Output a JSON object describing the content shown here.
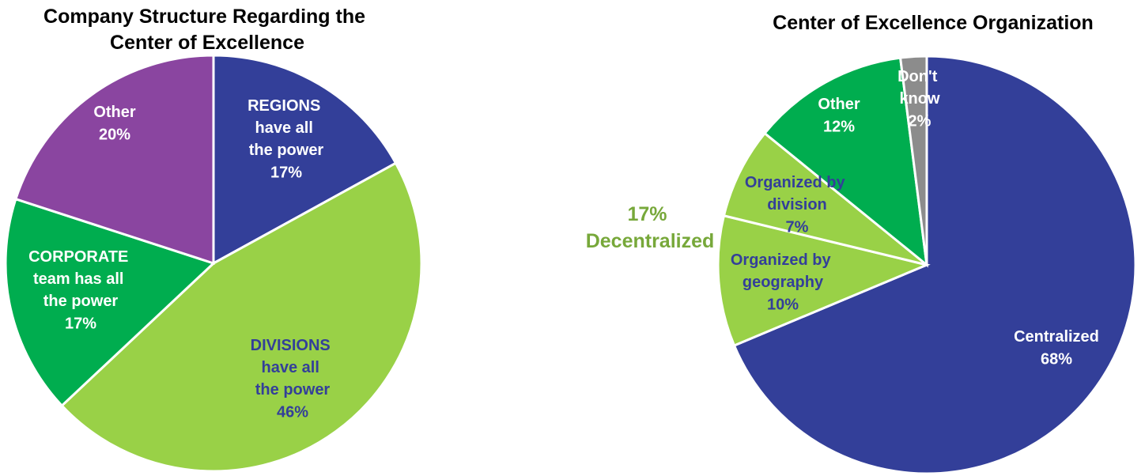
{
  "chart_data": [
    {
      "type": "pie",
      "title": "Company Structure Regarding the Center of Excellence",
      "categories": [
        "REGIONS have all the power",
        "DIVISIONS have all the power",
        "CORPORATE team has all the power",
        "Other"
      ],
      "values": [
        17,
        46,
        17,
        20
      ],
      "value_labels": [
        "17%",
        "46%",
        "17%",
        "20%"
      ],
      "colors": [
        "#333f99",
        "#99d147",
        "#00ad4f",
        "#8a45a0"
      ],
      "label_colors": [
        "#ffffff",
        "#333f99",
        "#ffffff",
        "#ffffff"
      ]
    },
    {
      "type": "pie",
      "title": "Center of Excellence Organization",
      "categories": [
        "Centralized",
        "Organized by geography",
        "Organized by division",
        "Other",
        "Don't know"
      ],
      "values": [
        68,
        10,
        7,
        12,
        2
      ],
      "value_labels": [
        "68%",
        "10%",
        "7%",
        "12%",
        "2%"
      ],
      "colors": [
        "#333f99",
        "#99d147",
        "#99d147",
        "#00ad4f",
        "#8c8c8c"
      ],
      "label_colors": [
        "#ffffff",
        "#333f99",
        "#333f99",
        "#ffffff",
        "#ffffff"
      ],
      "annotation": "17% Decentralized",
      "annotation_color": "#77a83a"
    }
  ]
}
